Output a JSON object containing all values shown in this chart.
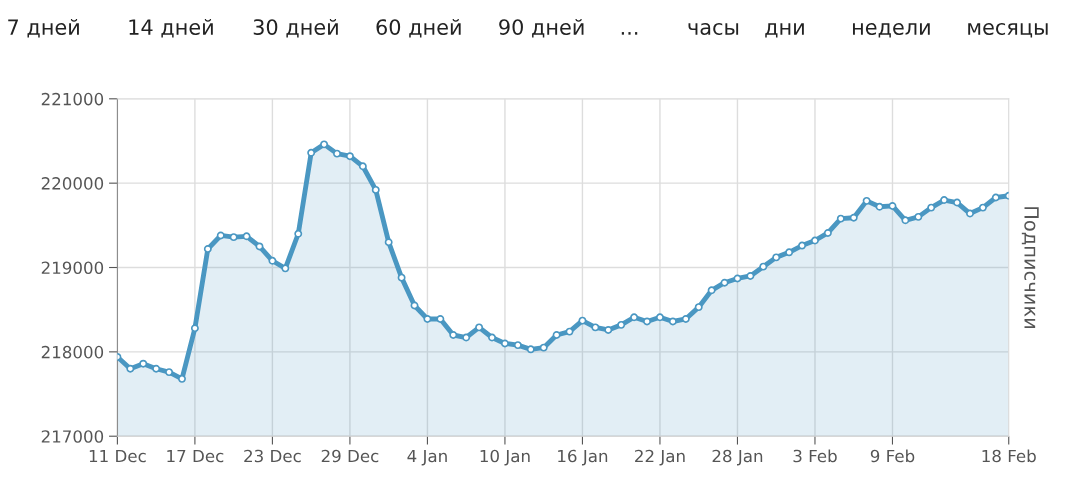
{
  "chart_data": {
    "type": "area",
    "ylabel": "Подписчики",
    "annotations": [
      "7 дней",
      "14 дней",
      "30 дней",
      "60 дней",
      "90 дней",
      "...",
      "часы",
      "дни",
      "недели",
      "месяцы"
    ],
    "categories": [
      "11 Dec",
      null,
      null,
      null,
      null,
      null,
      "17 Dec",
      null,
      null,
      null,
      null,
      null,
      "23 Dec",
      null,
      null,
      null,
      null,
      null,
      "29 Dec",
      null,
      null,
      null,
      null,
      null,
      "4 Jan",
      null,
      null,
      null,
      null,
      null,
      "10 Jan",
      null,
      null,
      null,
      null,
      null,
      "16 Jan",
      null,
      null,
      null,
      null,
      null,
      "22 Jan",
      null,
      null,
      null,
      null,
      null,
      "28 Jan",
      null,
      null,
      null,
      null,
      null,
      "3 Feb",
      null,
      null,
      null,
      null,
      null,
      "9 Feb",
      null,
      null,
      null,
      null,
      null,
      null,
      null,
      null,
      "18 Feb"
    ],
    "series": [
      {
        "color": "#4a97c2",
        "values": [
          217940,
          217800,
          217860,
          217800,
          217760,
          217680,
          218280,
          219220,
          219380,
          219360,
          219370,
          219250,
          219080,
          218990,
          219400,
          220360,
          220460,
          220350,
          220320,
          220200,
          219920,
          219300,
          218880,
          218550,
          218390,
          218390,
          218200,
          218170,
          218290,
          218170,
          218100,
          218080,
          218030,
          218050,
          218200,
          218240,
          218370,
          218290,
          218260,
          218320,
          218410,
          218360,
          218410,
          218360,
          218390,
          218530,
          218730,
          218820,
          218870,
          218900,
          219010,
          219120,
          219180,
          219260,
          219320,
          219410,
          219580,
          219590,
          219790,
          219720,
          219730,
          219560,
          219600,
          219710,
          219800,
          219770,
          219640,
          219710,
          219830,
          219850
        ]
      }
    ],
    "ylim": [
      217000,
      221000
    ],
    "yticks": [
      217000,
      218000,
      219000,
      220000,
      221000
    ],
    "grid": true,
    "marker": "circle",
    "line_style": "solid"
  }
}
